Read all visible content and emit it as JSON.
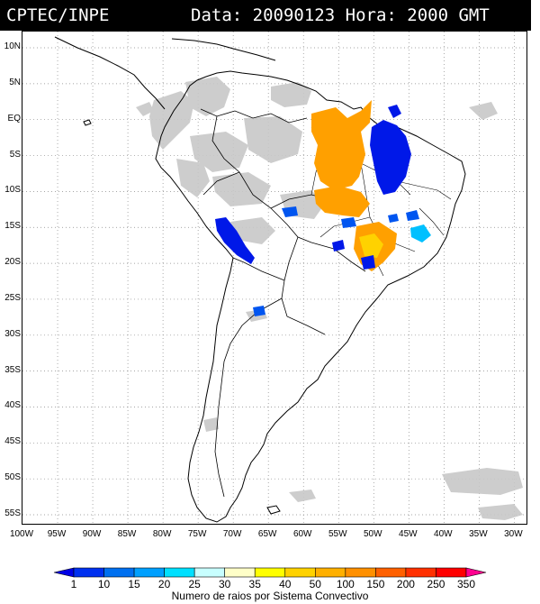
{
  "header": {
    "org": "CPTEC/INPE",
    "date_label": "Data:",
    "date_value": "20090123",
    "hour_label": "Hora:",
    "hour_value": "2000 GMT"
  },
  "map": {
    "lat_labels": [
      "10N",
      "5N",
      "EQ",
      "5S",
      "10S",
      "15S",
      "20S",
      "25S",
      "30S",
      "35S",
      "40S",
      "45S",
      "50S",
      "55S"
    ],
    "lon_labels": [
      "100W",
      "95W",
      "90W",
      "85W",
      "80W",
      "75W",
      "70W",
      "65W",
      "60W",
      "55W",
      "50W",
      "45W",
      "40W",
      "35W",
      "30W"
    ],
    "grid": "dotted"
  },
  "colorbar": {
    "labels": [
      "1",
      "10",
      "15",
      "20",
      "25",
      "30",
      "35",
      "40",
      "50",
      "100",
      "150",
      "200",
      "250",
      "350"
    ],
    "colors": [
      "#0000e6",
      "#0030f0",
      "#0070f0",
      "#00a0ff",
      "#00e0ff",
      "#c8ffff",
      "#ffffc8",
      "#ffff00",
      "#ffd200",
      "#ffb000",
      "#ff9000",
      "#ff6000",
      "#ff3000",
      "#ff0000",
      "#ff0090"
    ],
    "title": "Numero de raios por Sistema Convectivo"
  }
}
